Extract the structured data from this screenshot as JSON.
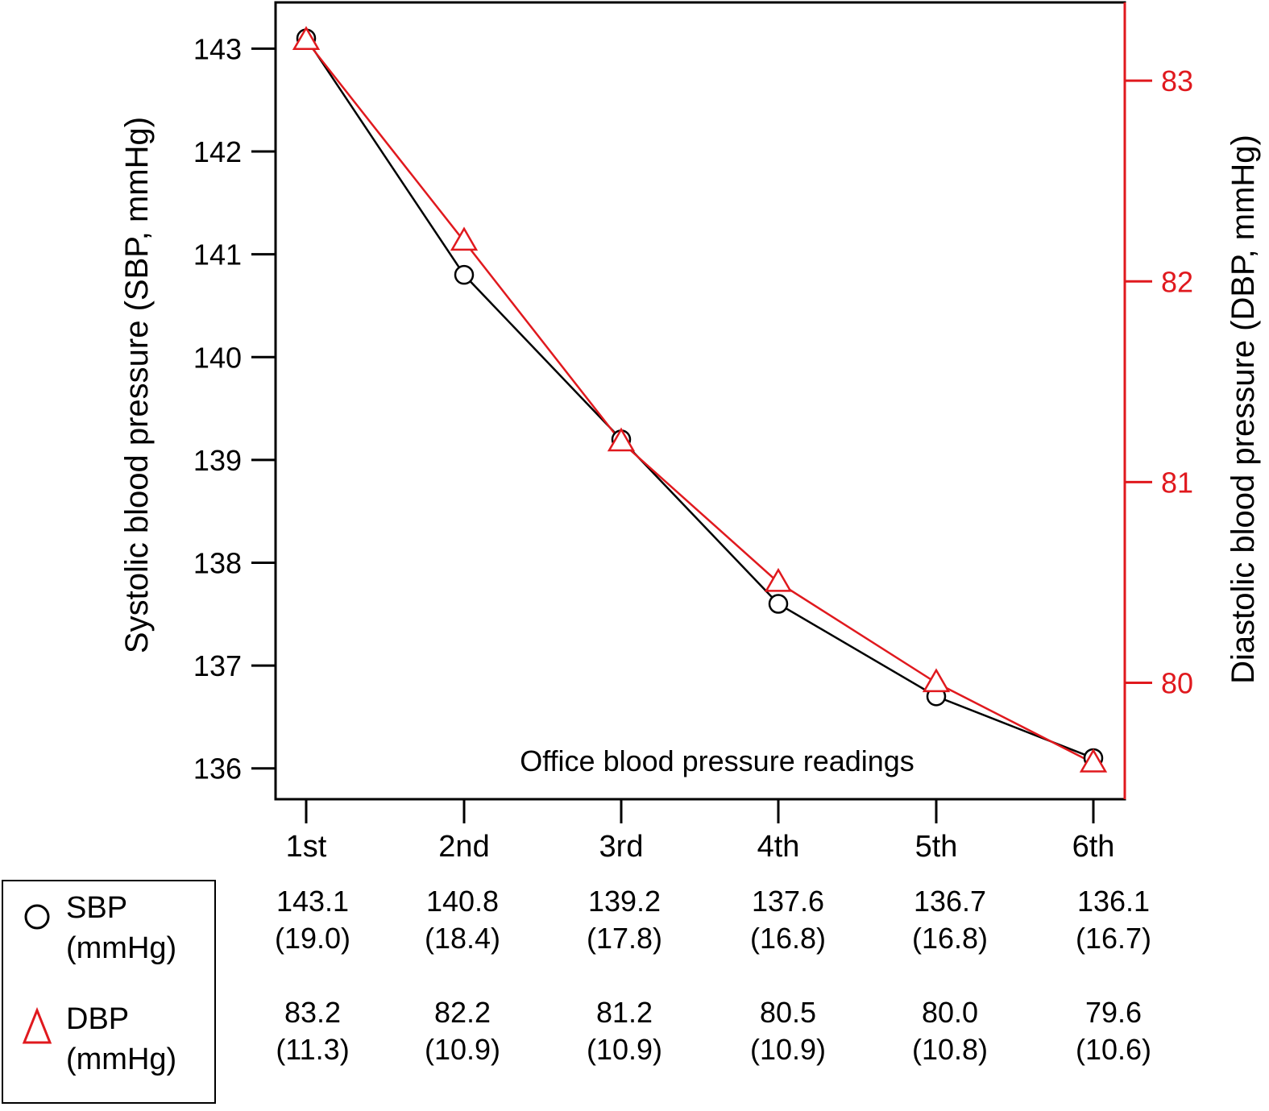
{
  "chart_data": {
    "type": "line",
    "categories": [
      "1st",
      "2nd",
      "3rd",
      "4th",
      "5th",
      "6th"
    ],
    "x_axis_title": "Office blood pressure readings",
    "y_left": {
      "label": "Systolic blood pressure (SBP, mmHg)",
      "range": [
        135.7,
        143.45
      ],
      "ticks": [
        136,
        137,
        138,
        139,
        140,
        141,
        142,
        143
      ],
      "color": "#000000"
    },
    "y_right": {
      "label": "Diastolic blood pressure (DBP, mmHg)",
      "range": [
        79.42,
        83.39
      ],
      "ticks": [
        80,
        81,
        82,
        83
      ],
      "color": "#e0191e"
    },
    "series": [
      {
        "name": "SBP",
        "unit": "(mmHg)",
        "axis": "left",
        "marker": "circle",
        "color": "#000000",
        "values": [
          143.1,
          140.8,
          139.2,
          137.6,
          136.7,
          136.1
        ],
        "sd": [
          "(19.0)",
          "(18.4)",
          "(17.8)",
          "(16.8)",
          "(16.8)",
          "(16.7)"
        ],
        "labels": [
          "143.1",
          "140.8",
          "139.2",
          "137.6",
          "136.7",
          "136.1"
        ]
      },
      {
        "name": "DBP",
        "unit": "(mmHg)",
        "axis": "right",
        "marker": "triangle",
        "color": "#e0191e",
        "values": [
          83.2,
          82.2,
          81.2,
          80.5,
          80.0,
          79.6
        ],
        "sd": [
          "(11.3)",
          "(10.9)",
          "(10.9)",
          "(10.9)",
          "(10.8)",
          "(10.6)"
        ],
        "labels": [
          "83.2",
          "82.2",
          "81.2",
          "80.5",
          "80.0",
          "79.6"
        ]
      }
    ],
    "grid": false,
    "legend_placement": "bottom-left"
  }
}
